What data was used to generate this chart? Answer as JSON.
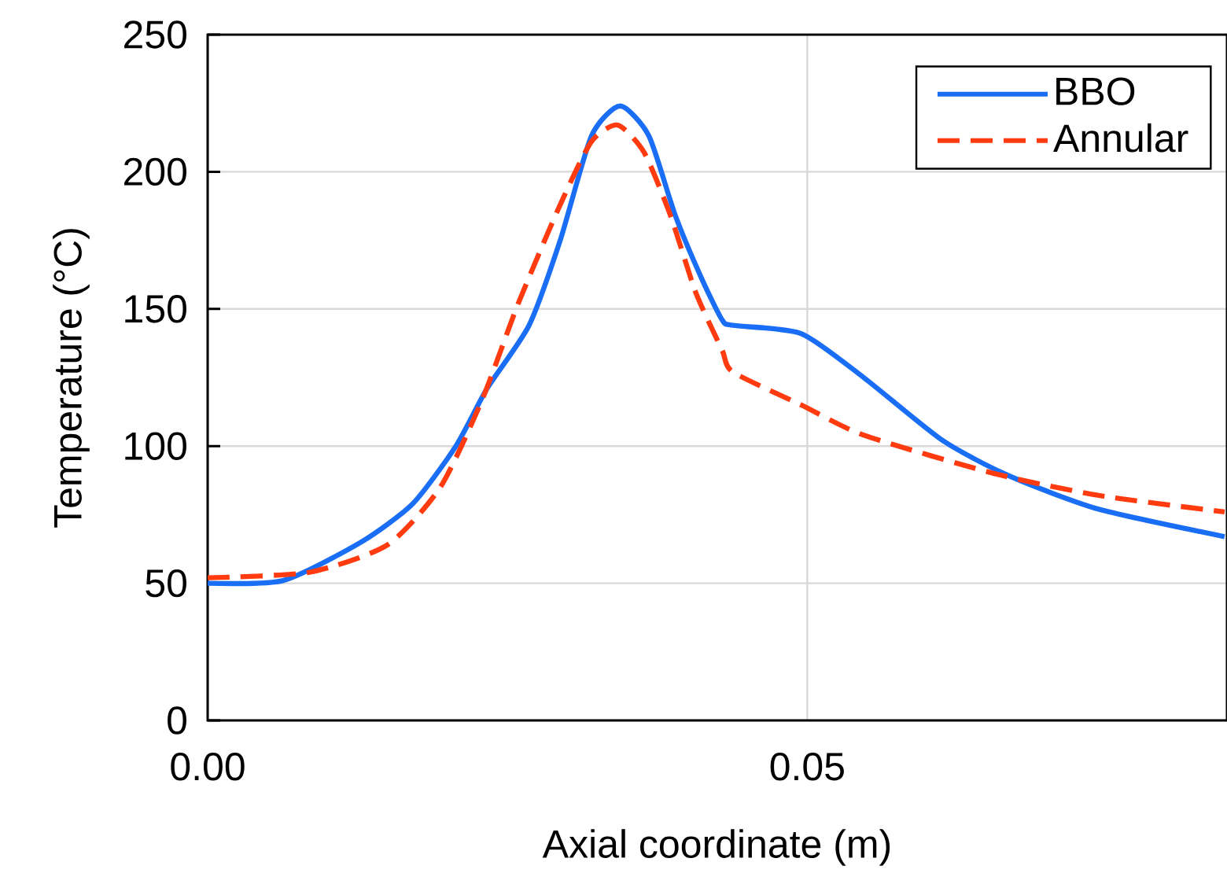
{
  "chart_data": {
    "type": "line",
    "xlabel": "Axial coordinate (m)",
    "ylabel": "Temperature (°C)",
    "xlim": [
      0,
      0.085
    ],
    "ylim": [
      0,
      250
    ],
    "xticks": [
      {
        "value": 0,
        "label": "0.00"
      },
      {
        "value": 0.05,
        "label": "0.05"
      }
    ],
    "yticks": [
      0,
      50,
      100,
      150,
      200,
      250
    ],
    "grid": true,
    "legend": "top right",
    "marker": "none",
    "series": [
      {
        "name": "BBO",
        "color": "#1a6ef5",
        "line_style": "solid",
        "x": [
          0,
          0.0063,
          0.0128,
          0.0171,
          0.0207,
          0.0233,
          0.0268,
          0.0294,
          0.032,
          0.0344,
          0.0368,
          0.039,
          0.0412,
          0.0429,
          0.0438,
          0.0495,
          0.0547,
          0.0613,
          0.0669,
          0.0743,
          0.0848
        ],
        "values": [
          50,
          51,
          65,
          79,
          100,
          121,
          144,
          175,
          213,
          224,
          213,
          184,
          161,
          146,
          144,
          141,
          125,
          102,
          89,
          77,
          67
        ]
      },
      {
        "name": "Annular",
        "color": "#ff3b0f",
        "line_style": "dashed",
        "x": [
          0,
          0.0085,
          0.015,
          0.0194,
          0.0229,
          0.0259,
          0.0294,
          0.032,
          0.0342,
          0.0364,
          0.0386,
          0.0407,
          0.0429,
          0.0438,
          0.0495,
          0.0547,
          0.0656,
          0.0743,
          0.0848
        ],
        "values": [
          52,
          54,
          64,
          85,
          117,
          152,
          188,
          211,
          217,
          207,
          184,
          156,
          135,
          127,
          115,
          104,
          90,
          82,
          76
        ]
      }
    ]
  }
}
